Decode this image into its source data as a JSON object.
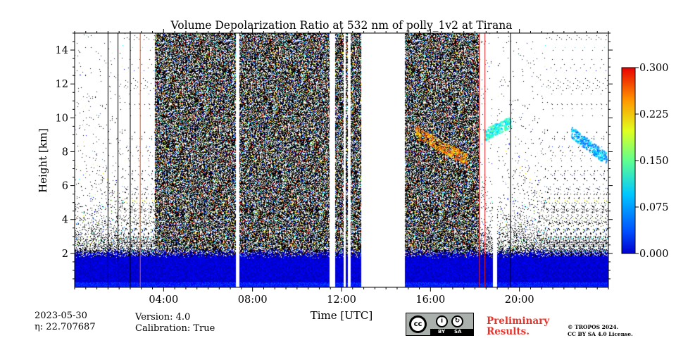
{
  "chart_data": {
    "type": "heatmap",
    "title": "Volume Depolarization Ratio at 532 nm of polly_1v2 at Tirana",
    "xlabel": "Time [UTC]",
    "ylabel": "Height [km]",
    "xlim_hours": [
      0,
      24
    ],
    "ylim_km": [
      0,
      15
    ],
    "x_ticks": [
      {
        "value": 4,
        "label": "04:00"
      },
      {
        "value": 8,
        "label": "08:00"
      },
      {
        "value": 12,
        "label": "12:00"
      },
      {
        "value": 16,
        "label": "16:00"
      },
      {
        "value": 20,
        "label": "20:00"
      }
    ],
    "y_ticks": [
      {
        "value": 2,
        "label": "2"
      },
      {
        "value": 4,
        "label": "4"
      },
      {
        "value": 6,
        "label": "6"
      },
      {
        "value": 8,
        "label": "8"
      },
      {
        "value": 10,
        "label": "10"
      },
      {
        "value": 12,
        "label": "12"
      },
      {
        "value": 14,
        "label": "14"
      }
    ],
    "colorbar": {
      "range": [
        0.0,
        0.3
      ],
      "colormap": "jet",
      "ticks": [
        {
          "value": 0.0,
          "label": "0.000"
        },
        {
          "value": 0.075,
          "label": "0.075"
        },
        {
          "value": 0.15,
          "label": "0.150"
        },
        {
          "value": 0.225,
          "label": "0.225"
        },
        {
          "value": 0.3,
          "label": "0.300"
        }
      ]
    },
    "data_gaps_hours": [
      [
        7.25,
        7.4
      ],
      [
        11.45,
        11.7
      ],
      [
        12.1,
        12.2
      ],
      [
        12.3,
        12.4
      ],
      [
        12.9,
        14.85
      ],
      [
        18.8,
        19.0
      ]
    ],
    "dense_noise_periods_hours": [
      [
        3.6,
        11.45
      ],
      [
        11.7,
        12.9
      ],
      [
        14.85,
        18.2
      ]
    ],
    "boundary_layer_top_km": 2.0,
    "boundary_layer_depol": 0.02,
    "cloud_features": [
      {
        "time_start": 15.3,
        "time_end": 17.6,
        "height_start_km": 9.2,
        "height_end_km": 7.6,
        "depol": 0.22
      },
      {
        "time_start": 18.4,
        "time_end": 19.6,
        "height_start_km": 9.0,
        "height_end_km": 9.8,
        "depol": 0.12
      },
      {
        "time_start": 22.3,
        "time_end": 23.9,
        "height_start_km": 9.2,
        "height_end_km": 7.6,
        "depol": 0.09
      }
    ],
    "vertical_lines_hours": [
      {
        "hour": 1.5,
        "color": "#000000"
      },
      {
        "hour": 1.95,
        "color": "#000000"
      },
      {
        "hour": 2.5,
        "color": "#000000"
      },
      {
        "hour": 2.95,
        "color": "#e06020"
      },
      {
        "hour": 18.2,
        "color": "#e02020"
      },
      {
        "hour": 18.45,
        "color": "#e02020"
      },
      {
        "hour": 19.6,
        "color": "#000000"
      }
    ]
  },
  "meta": {
    "date": "2023-05-30",
    "eta_label": "η: 22.707687",
    "version": "Version: 4.0",
    "calibration": "Calibration: True"
  },
  "license": {
    "cc": "cc",
    "by": "BY",
    "sa": "SA",
    "preliminary_line1": "Preliminary",
    "preliminary_line2": "Results.",
    "copyright_line1": "© TROPOS 2024.",
    "copyright_line2": "CC BY SA 4.0 License."
  }
}
